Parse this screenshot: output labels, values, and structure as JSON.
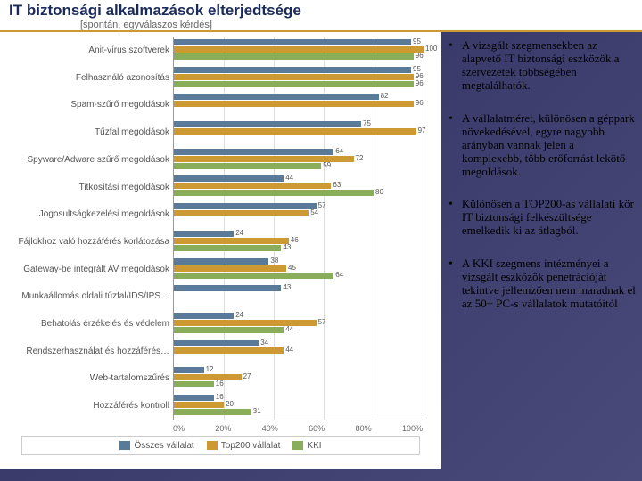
{
  "title": "IT biztonsági alkalmazások elterjedtsége",
  "subtitle": "[spontán, egyválaszos kérdés]",
  "chart": {
    "type": "bar-horizontal-grouped",
    "background_color": "#ffffff",
    "grid_color": "#dddddd",
    "label_color": "#555555",
    "label_fontsize": 10,
    "value_fontsize": 8,
    "xlim": [
      0,
      100
    ],
    "xtick_step": 20,
    "xticks": [
      "0%",
      "20%",
      "40%",
      "60%",
      "80%",
      "100%"
    ],
    "series": [
      {
        "name": "Összes vállalat",
        "color": "#5a7a9a"
      },
      {
        "name": "Top200 vállalat",
        "color": "#cc9933"
      },
      {
        "name": "KKI",
        "color": "#8aad5a"
      }
    ],
    "categories": [
      {
        "label": "Anit-vírus szoftverek",
        "values": [
          95,
          100,
          96
        ]
      },
      {
        "label": "Felhasználó azonosítás",
        "values": [
          95,
          96,
          96
        ]
      },
      {
        "label": "Spam-szűrő megoldások",
        "values": [
          82,
          96,
          null
        ]
      },
      {
        "label": "Tűzfal megoldások",
        "values": [
          75,
          97,
          null
        ]
      },
      {
        "label": "Spyware/Adware szűrő megoldások",
        "values": [
          64,
          72,
          59
        ]
      },
      {
        "label": "Titkosítási megoldások",
        "values": [
          44,
          63,
          80
        ]
      },
      {
        "label": "Jogosultságkezelési megoldások",
        "values": [
          57,
          54,
          null
        ]
      },
      {
        "label": "Fájlokhoz való hozzáférés korlátozása",
        "values": [
          24,
          46,
          43
        ]
      },
      {
        "label": "Gateway-be integrált AV megoldások",
        "values": [
          38,
          45,
          64
        ]
      },
      {
        "label": "Munkaállomás oldali tűzfal/IDS/IPS…",
        "values": [
          43,
          null,
          null
        ]
      },
      {
        "label": "Behatolás érzékelés és védelem",
        "values": [
          24,
          57,
          44
        ]
      },
      {
        "label": "Rendszerhasználat és hozzáférés…",
        "values": [
          34,
          44,
          null
        ]
      },
      {
        "label": "Web-tartalomszűrés",
        "values": [
          12,
          27,
          16
        ]
      },
      {
        "label": "Hozzáférés kontroll",
        "values": [
          16,
          20,
          31
        ]
      }
    ]
  },
  "legend_prefix": "",
  "bullets": [
    "A vizsgált szegmensekben az alapvető IT biztonsági eszközök a szervezetek többségében megtalálhatók.",
    "A vállalatméret, különösen a géppark növekedésével, egyre nagyobb arányban vannak jelen a komplexebb, több erőforrást lekötő megoldások.",
    "Különösen a TOP200-as vállalati kör IT biztonsági felkészültsége emelkedik ki az átlagból.",
    "A KKI szegmens intézményei a vizsgált eszközök penetrációját tekintve jellemzően nem maradnak el az 50+ PC-s vállalatok mutatóitól"
  ]
}
